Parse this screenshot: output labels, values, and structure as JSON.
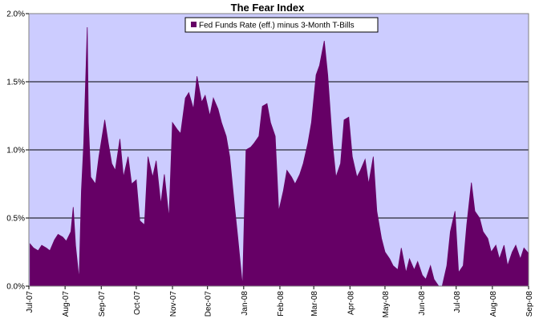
{
  "chart_data": {
    "type": "area",
    "title": "The Fear Index",
    "xlabel": "",
    "ylabel": "",
    "ylim": [
      0,
      2.0
    ],
    "yticks": [
      "0.0%",
      "0.5%",
      "1.0%",
      "1.5%",
      "2.0%"
    ],
    "ytick_values": [
      0,
      0.5,
      1.0,
      1.5,
      2.0
    ],
    "xticks": [
      "Jul-07",
      "Aug-07",
      "Sep-07",
      "Oct-07",
      "Nov-07",
      "Dec-07",
      "Jan-08",
      "Feb-08",
      "Mar-08",
      "Apr-08",
      "May-08",
      "Jun-08",
      "Jul-08",
      "Aug-08",
      "Sep-08"
    ],
    "grid": true,
    "legend_position": "top-center",
    "colors": {
      "plot_bg": "#ccccff",
      "fill": "#660066",
      "grid": "#000000"
    },
    "series": [
      {
        "name": "Fed Funds Rate (eff.) minus 3-Month T-Bills",
        "x": [
          "2007-07-02",
          "2007-07-05",
          "2007-07-09",
          "2007-07-12",
          "2007-07-16",
          "2007-07-19",
          "2007-07-23",
          "2007-07-26",
          "2007-07-30",
          "2007-08-02",
          "2007-08-06",
          "2007-08-08",
          "2007-08-10",
          "2007-08-13",
          "2007-08-15",
          "2007-08-17",
          "2007-08-20",
          "2007-08-21",
          "2007-08-23",
          "2007-08-27",
          "2007-08-30",
          "2007-09-04",
          "2007-09-07",
          "2007-09-10",
          "2007-09-13",
          "2007-09-17",
          "2007-09-20",
          "2007-09-24",
          "2007-09-27",
          "2007-10-01",
          "2007-10-04",
          "2007-10-08",
          "2007-10-11",
          "2007-10-15",
          "2007-10-18",
          "2007-10-22",
          "2007-10-25",
          "2007-10-29",
          "2007-11-01",
          "2007-11-05",
          "2007-11-08",
          "2007-11-12",
          "2007-11-15",
          "2007-11-19",
          "2007-11-22",
          "2007-11-26",
          "2007-11-29",
          "2007-12-03",
          "2007-12-06",
          "2007-12-10",
          "2007-12-13",
          "2007-12-17",
          "2007-12-20",
          "2007-12-24",
          "2007-12-27",
          "2007-12-31",
          "2008-01-03",
          "2008-01-07",
          "2008-01-10",
          "2008-01-14",
          "2008-01-17",
          "2008-01-21",
          "2008-01-24",
          "2008-01-28",
          "2008-01-31",
          "2008-02-04",
          "2008-02-07",
          "2008-02-11",
          "2008-02-14",
          "2008-02-18",
          "2008-02-21",
          "2008-02-25",
          "2008-02-28",
          "2008-03-03",
          "2008-03-06",
          "2008-03-10",
          "2008-03-13",
          "2008-03-17",
          "2008-03-20",
          "2008-03-24",
          "2008-03-27",
          "2008-03-31",
          "2008-04-03",
          "2008-04-07",
          "2008-04-10",
          "2008-04-14",
          "2008-04-17",
          "2008-04-21",
          "2008-04-24",
          "2008-04-28",
          "2008-05-01",
          "2008-05-05",
          "2008-05-08",
          "2008-05-12",
          "2008-05-15",
          "2008-05-19",
          "2008-05-22",
          "2008-05-26",
          "2008-05-29",
          "2008-06-02",
          "2008-06-05",
          "2008-06-09",
          "2008-06-12",
          "2008-06-16",
          "2008-06-19",
          "2008-06-23",
          "2008-06-26",
          "2008-06-30",
          "2008-07-03",
          "2008-07-07",
          "2008-07-10",
          "2008-07-14",
          "2008-07-17",
          "2008-07-21",
          "2008-07-24",
          "2008-07-28",
          "2008-07-31",
          "2008-08-04",
          "2008-08-07",
          "2008-08-11",
          "2008-08-14",
          "2008-08-18",
          "2008-08-21",
          "2008-08-25",
          "2008-08-28",
          "2008-09-01"
        ],
        "values": [
          0.31,
          0.28,
          0.26,
          0.3,
          0.28,
          0.26,
          0.34,
          0.38,
          0.36,
          0.33,
          0.4,
          0.58,
          0.3,
          0.05,
          0.7,
          1.05,
          1.9,
          1.2,
          0.8,
          0.75,
          0.95,
          1.22,
          1.05,
          0.9,
          0.85,
          1.08,
          0.8,
          0.95,
          0.75,
          0.78,
          0.48,
          0.45,
          0.95,
          0.8,
          0.92,
          0.6,
          0.82,
          0.5,
          1.2,
          1.15,
          1.12,
          1.38,
          1.42,
          1.3,
          1.54,
          1.35,
          1.4,
          1.25,
          1.38,
          1.3,
          1.2,
          1.1,
          0.95,
          0.6,
          0.35,
          0.0,
          1.0,
          1.02,
          1.05,
          1.1,
          1.32,
          1.34,
          1.2,
          1.1,
          0.55,
          0.7,
          0.85,
          0.8,
          0.75,
          0.82,
          0.9,
          1.05,
          1.2,
          1.55,
          1.62,
          1.8,
          1.55,
          1.05,
          0.8,
          0.9,
          1.22,
          1.24,
          0.95,
          0.8,
          0.85,
          0.93,
          0.75,
          0.95,
          0.55,
          0.35,
          0.25,
          0.2,
          0.15,
          0.12,
          0.28,
          0.1,
          0.2,
          0.12,
          0.18,
          0.08,
          0.05,
          0.15,
          0.05,
          0.0,
          0.0,
          0.15,
          0.4,
          0.55,
          0.1,
          0.15,
          0.45,
          0.76,
          0.55,
          0.5,
          0.4,
          0.35,
          0.25,
          0.3,
          0.2,
          0.3,
          0.15,
          0.25,
          0.3,
          0.2,
          0.28,
          0.24
        ]
      }
    ]
  }
}
